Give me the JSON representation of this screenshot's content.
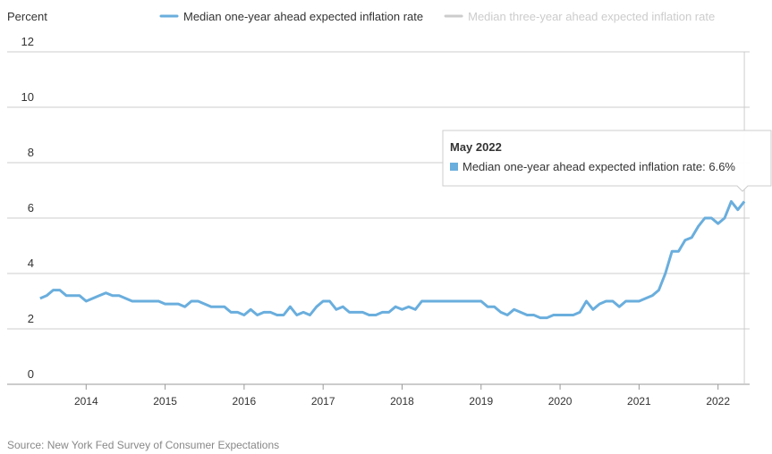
{
  "chart_data": {
    "type": "line",
    "y_axis_label": "Percent",
    "source": "Source: New York Fed Survey of Consumer Expectations",
    "x": [
      2013.417,
      2013.5,
      2013.583,
      2013.667,
      2013.75,
      2013.833,
      2013.917,
      2014,
      2014.083,
      2014.167,
      2014.25,
      2014.333,
      2014.417,
      2014.5,
      2014.583,
      2014.667,
      2014.75,
      2014.833,
      2014.917,
      2015,
      2015.083,
      2015.167,
      2015.25,
      2015.333,
      2015.417,
      2015.5,
      2015.583,
      2015.667,
      2015.75,
      2015.833,
      2015.917,
      2016,
      2016.083,
      2016.167,
      2016.25,
      2016.333,
      2016.417,
      2016.5,
      2016.583,
      2016.667,
      2016.75,
      2016.833,
      2016.917,
      2017,
      2017.083,
      2017.167,
      2017.25,
      2017.333,
      2017.417,
      2017.5,
      2017.583,
      2017.667,
      2017.75,
      2017.833,
      2017.917,
      2018,
      2018.083,
      2018.167,
      2018.25,
      2018.333,
      2018.417,
      2018.5,
      2018.583,
      2018.667,
      2018.75,
      2018.833,
      2018.917,
      2019,
      2019.083,
      2019.167,
      2019.25,
      2019.333,
      2019.417,
      2019.5,
      2019.583,
      2019.667,
      2019.75,
      2019.833,
      2019.917,
      2020,
      2020.083,
      2020.167,
      2020.25,
      2020.333,
      2020.417,
      2020.5,
      2020.583,
      2020.667,
      2020.75,
      2020.833,
      2020.917,
      2021,
      2021.083,
      2021.167,
      2021.25,
      2021.333,
      2021.417,
      2021.5,
      2021.583,
      2021.667,
      2021.75,
      2021.833,
      2021.917,
      2022,
      2022.083,
      2022.167,
      2022.25,
      2022.333
    ],
    "series": [
      {
        "name": "Median one-year ahead expected inflation rate",
        "color": "#6aaedd",
        "values": [
          3.1,
          3.2,
          3.4,
          3.4,
          3.2,
          3.2,
          3.2,
          3.0,
          3.1,
          3.2,
          3.3,
          3.2,
          3.2,
          3.1,
          3.0,
          3.0,
          3.0,
          3.0,
          3.0,
          2.9,
          2.9,
          2.9,
          2.8,
          3.0,
          3.0,
          2.9,
          2.8,
          2.8,
          2.8,
          2.6,
          2.6,
          2.5,
          2.7,
          2.5,
          2.6,
          2.6,
          2.5,
          2.5,
          2.8,
          2.5,
          2.6,
          2.5,
          2.8,
          3.0,
          3.0,
          2.7,
          2.8,
          2.6,
          2.6,
          2.6,
          2.5,
          2.5,
          2.6,
          2.6,
          2.8,
          2.7,
          2.8,
          2.7,
          3.0,
          3.0,
          3.0,
          3.0,
          3.0,
          3.0,
          3.0,
          3.0,
          3.0,
          3.0,
          2.8,
          2.8,
          2.6,
          2.5,
          2.7,
          2.6,
          2.5,
          2.5,
          2.4,
          2.4,
          2.5,
          2.5,
          2.5,
          2.5,
          2.6,
          3.0,
          2.7,
          2.9,
          3.0,
          3.0,
          2.8,
          3.0,
          3.0,
          3.0,
          3.1,
          3.2,
          3.4,
          4.0,
          4.8,
          4.8,
          5.2,
          5.3,
          5.7,
          6.0,
          6.0,
          5.8,
          6.0,
          6.6,
          6.3,
          6.6
        ]
      },
      {
        "name": "Median three-year ahead expected inflation rate",
        "color": "#cccccc",
        "visible": false
      }
    ],
    "xlim": [
      2013,
      2022.4
    ],
    "xticks": [
      2014,
      2015,
      2016,
      2017,
      2018,
      2019,
      2020,
      2021,
      2022
    ],
    "ylim": [
      0,
      12
    ],
    "yticks": [
      0,
      2,
      4,
      6,
      8,
      10,
      12
    ],
    "grid": true,
    "tooltip": {
      "title": "May 2022",
      "text": "Median one-year ahead expected inflation rate: 6.6%"
    }
  }
}
